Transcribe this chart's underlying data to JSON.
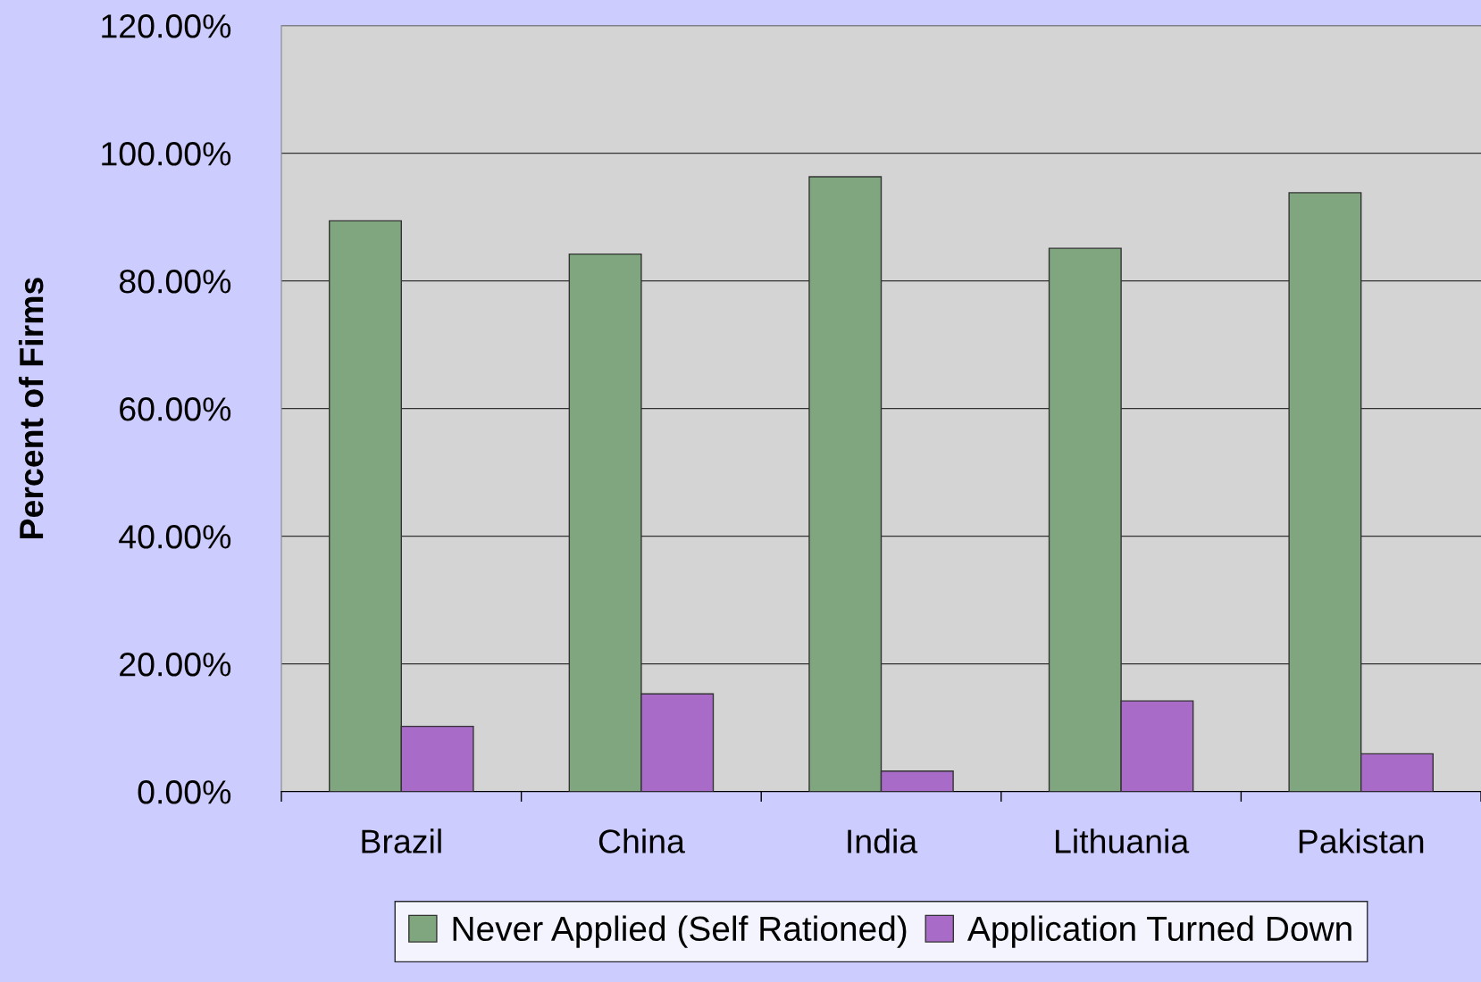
{
  "chart_data": {
    "type": "bar",
    "ylabel": "Percent of Firms",
    "categories": [
      "Brazil",
      "China",
      "India",
      "Lithuania",
      "Pakistan"
    ],
    "series": [
      {
        "name": "Never Applied (Self Rationed)",
        "color": "#7fa67f",
        "values": [
          89.4,
          84.2,
          96.3,
          85.1,
          93.8
        ]
      },
      {
        "name": "Application Turned Down",
        "color": "#a86cc8",
        "values": [
          10.2,
          15.3,
          3.2,
          14.2,
          5.9
        ]
      }
    ],
    "ylim": [
      0,
      120
    ],
    "yticks": [
      {
        "value": 0,
        "label": "0.00%"
      },
      {
        "value": 20,
        "label": "20.00%"
      },
      {
        "value": 40,
        "label": "40.00%"
      },
      {
        "value": 60,
        "label": "60.00%"
      },
      {
        "value": 80,
        "label": "80.00%"
      },
      {
        "value": 100,
        "label": "100.00%"
      },
      {
        "value": 120,
        "label": "120.00%"
      }
    ],
    "grid": "y",
    "legend": "bottom"
  }
}
